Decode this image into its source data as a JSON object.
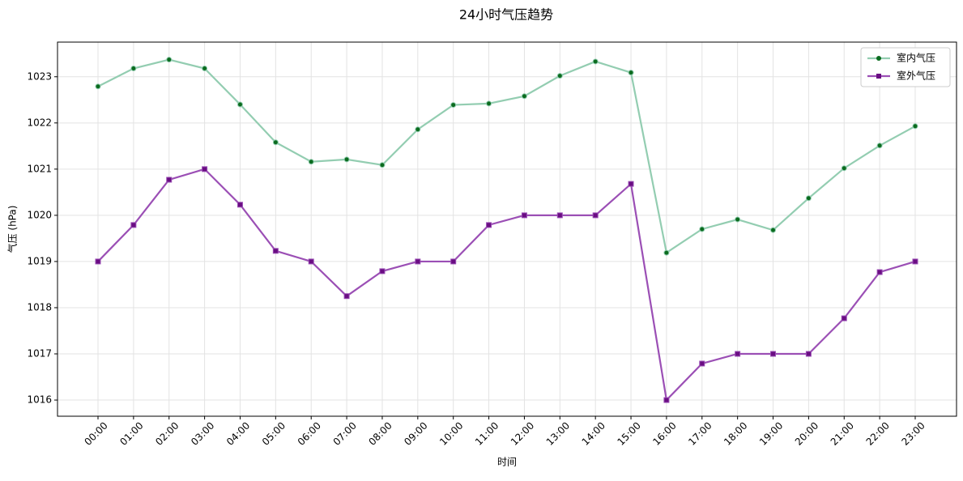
{
  "chart_data": {
    "type": "line",
    "title": "24小时气压趋势",
    "x_label": "时间",
    "y_label": "气压 (hPa)",
    "categories": [
      "00:00",
      "01:00",
      "02:00",
      "03:00",
      "04:00",
      "05:00",
      "06:00",
      "07:00",
      "08:00",
      "09:00",
      "10:00",
      "11:00",
      "12:00",
      "13:00",
      "14:00",
      "15:00",
      "16:00",
      "17:00",
      "18:00",
      "19:00",
      "20:00",
      "21:00",
      "22:00",
      "23:00"
    ],
    "series": [
      {
        "name": "室内气压",
        "color": "#93cdb1",
        "marker_color": "#0b6b1e",
        "marker": "circle",
        "values": [
          1022.79,
          1023.18,
          1023.37,
          1023.18,
          1022.4,
          1021.58,
          1021.16,
          1021.21,
          1021.09,
          1021.86,
          1022.39,
          1022.42,
          1022.58,
          1023.02,
          1023.33,
          1023.09,
          1019.19,
          1019.7,
          1019.91,
          1019.68,
          1020.37,
          1021.02,
          1021.51,
          1021.93
        ]
      },
      {
        "name": "室外气压",
        "color": "#9b4fb5",
        "marker_color": "#6a0d83",
        "marker": "square",
        "values": [
          1019,
          1019.79,
          1020.77,
          1021,
          1020.23,
          1019.23,
          1019,
          1018.25,
          1018.79,
          1019,
          1019,
          1019.79,
          1020,
          1020,
          1020,
          1020.68,
          1016,
          1016.79,
          1017,
          1017,
          1017,
          1017.77,
          1018.77,
          1019
        ]
      }
    ],
    "ylim": [
      1015.65,
      1023.75
    ],
    "yticks": [
      1016,
      1017,
      1018,
      1019,
      1020,
      1021,
      1022,
      1023
    ],
    "grid": true,
    "legend": "upper-right"
  }
}
